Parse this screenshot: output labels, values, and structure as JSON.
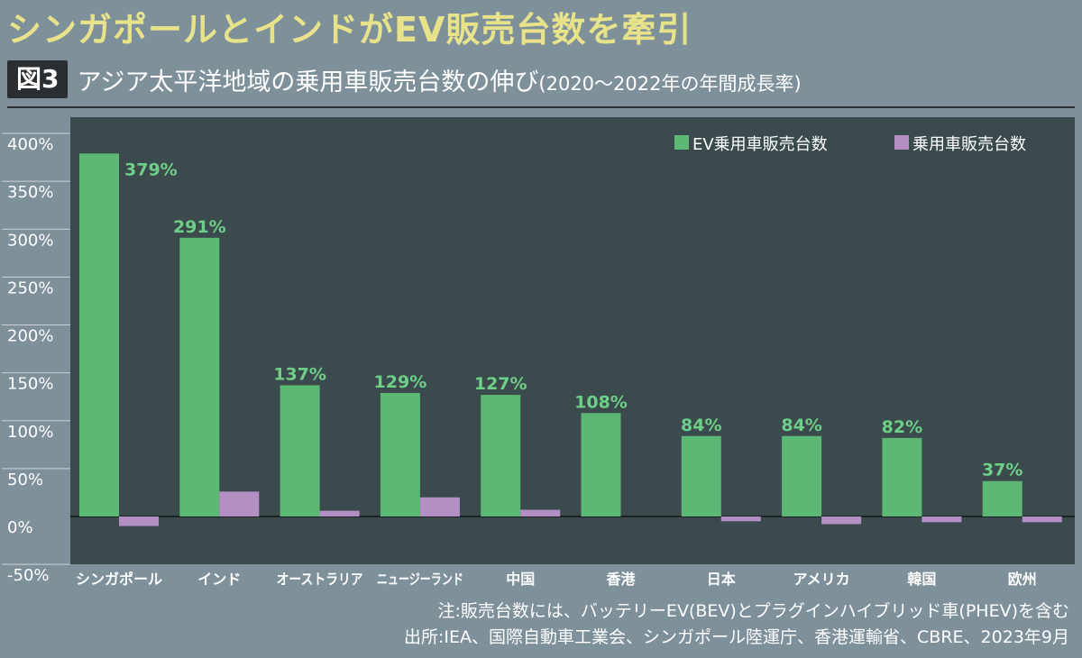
{
  "headline": "シンガポールとインドがEV販売台数を牽引",
  "figure": {
    "badge": "図3",
    "title": "アジア太平洋地域の乗用車販売台数の伸び",
    "subtitle": "(2020〜2022年の年間成長率)"
  },
  "notes": {
    "note": "注:販売台数には、バッテリーEV(BEV)とプラグインハイブリッド車(PHEV)を含む",
    "source": "出所:IEA、国際自動車工業会、シンガポール陸運庁、香港運輸省、CBRE、2023年9月"
  },
  "colors": {
    "ev": "#5cb874",
    "passenger": "#b38fc3",
    "plot_bg": "#3b4a4c",
    "label": "#6ecf88",
    "axis_text": "#ffffff"
  },
  "chart_data": {
    "type": "bar",
    "categories": [
      "シンガポール",
      "インド",
      "オーストラリア",
      "ニュージーランド",
      "中国",
      "香港",
      "日本",
      "アメリカ",
      "韓国",
      "欧州"
    ],
    "series": [
      {
        "name": "EV乗用車販売台数",
        "values": [
          379,
          291,
          137,
          129,
          127,
          108,
          84,
          84,
          82,
          37
        ]
      },
      {
        "name": "乗用車販売台数",
        "values": [
          -10,
          26,
          6,
          20,
          7,
          0,
          -5,
          -8,
          -6,
          -6
        ]
      }
    ],
    "value_labels": [
      "379%",
      "291%",
      "137%",
      "129%",
      "127%",
      "108%",
      "84%",
      "84%",
      "82%",
      "37%"
    ],
    "y_ticks": [
      400,
      350,
      300,
      250,
      200,
      150,
      100,
      50,
      0,
      -50
    ],
    "y_tick_labels": [
      "400%",
      "350%",
      "300%",
      "250%",
      "200%",
      "150%",
      "100%",
      "50%",
      "0%",
      "-50%"
    ],
    "ylim": [
      -50,
      400
    ],
    "title": "アジア太平洋地域の乗用車販売台数の伸び",
    "xlabel": "",
    "ylabel": "",
    "legend_position": "top-right"
  }
}
